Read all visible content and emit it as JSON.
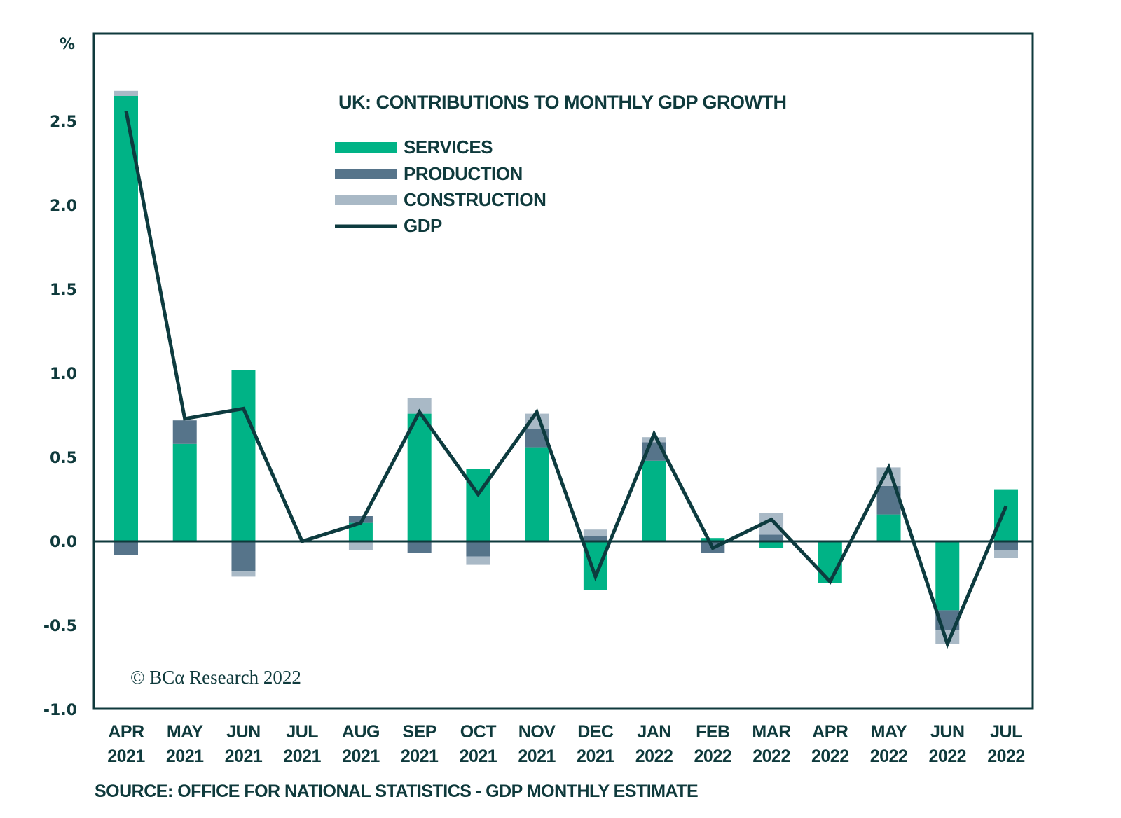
{
  "chart_data": {
    "type": "bar",
    "stacked": true,
    "title": "UK: CONTRIBUTIONS TO MONTHLY GDP GROWTH",
    "ylabel": "%",
    "xlabel": "",
    "ylim": [
      -1.0,
      2.8
    ],
    "yticks": [
      -1.0,
      -0.5,
      0.0,
      0.5,
      1.0,
      1.5,
      2.0,
      2.5
    ],
    "ytick_labels": [
      "-1.0",
      "-0.5",
      "0.0",
      "0.5",
      "1.0",
      "1.5",
      "2.0",
      "2.5"
    ],
    "grid": false,
    "legend_position": "top-center",
    "categories": [
      {
        "month": "APR",
        "year": "2021"
      },
      {
        "month": "MAY",
        "year": "2021"
      },
      {
        "month": "JUN",
        "year": "2021"
      },
      {
        "month": "JUL",
        "year": "2021"
      },
      {
        "month": "AUG",
        "year": "2021"
      },
      {
        "month": "SEP",
        "year": "2021"
      },
      {
        "month": "OCT",
        "year": "2021"
      },
      {
        "month": "NOV",
        "year": "2021"
      },
      {
        "month": "DEC",
        "year": "2021"
      },
      {
        "month": "JAN",
        "year": "2022"
      },
      {
        "month": "FEB",
        "year": "2022"
      },
      {
        "month": "MAR",
        "year": "2022"
      },
      {
        "month": "APR",
        "year": "2022"
      },
      {
        "month": "MAY",
        "year": "2022"
      },
      {
        "month": "JUN",
        "year": "2022"
      },
      {
        "month": "JUL",
        "year": "2022"
      }
    ],
    "series": [
      {
        "name": "SERVICES",
        "kind": "bar",
        "color": "#00b386",
        "values": [
          2.65,
          0.58,
          1.02,
          0.0,
          0.11,
          0.76,
          0.43,
          0.56,
          -0.29,
          0.48,
          0.02,
          -0.04,
          -0.25,
          0.16,
          -0.41,
          0.31
        ]
      },
      {
        "name": "PRODUCTION",
        "kind": "bar",
        "color": "#56748a",
        "values": [
          -0.08,
          0.14,
          -0.18,
          0.0,
          0.04,
          -0.07,
          -0.09,
          0.11,
          0.03,
          0.11,
          -0.07,
          0.04,
          0.0,
          0.17,
          -0.12,
          -0.05
        ]
      },
      {
        "name": "CONSTRUCTION",
        "kind": "bar",
        "color": "#a9b9c6",
        "values": [
          0.03,
          0.0,
          -0.03,
          0.0,
          -0.05,
          0.09,
          -0.05,
          0.09,
          0.04,
          0.03,
          0.0,
          0.13,
          0.0,
          0.11,
          -0.08,
          -0.05
        ]
      },
      {
        "name": "GDP",
        "kind": "line",
        "color": "#0d3b3f",
        "values": [
          2.56,
          0.73,
          0.79,
          0.0,
          0.11,
          0.77,
          0.28,
          0.77,
          -0.21,
          0.64,
          -0.04,
          0.13,
          -0.24,
          0.44,
          -0.61,
          0.21
        ]
      }
    ],
    "annotations": {
      "copyright": "© BCα Research 2022",
      "source": "SOURCE: OFFICE FOR NATIONAL STATISTICS - GDP MONTHLY ESTIMATE"
    }
  },
  "colors": {
    "axis": "#0f3a3c",
    "text": "#0f3a3c",
    "background": "#ffffff"
  }
}
